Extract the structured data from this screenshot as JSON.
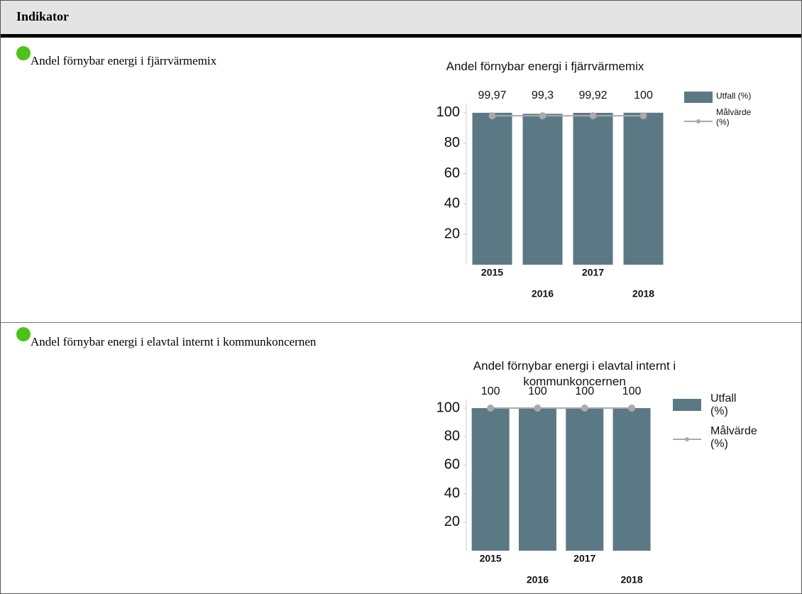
{
  "header": "Indikator",
  "rows": [
    {
      "label": "Andel förnybar energi i fjärrvärmemix"
    },
    {
      "label": "Andel förnybar energi i elavtal internt i kommunkoncernen"
    }
  ],
  "chart_data": [
    {
      "type": "bar",
      "title": "Andel förnybar energi i fjärrvärmemix",
      "categories": [
        "2015",
        "2016",
        "2017",
        "2018"
      ],
      "series": [
        {
          "name": "Utfall (%)",
          "color": "#5b7985",
          "values": [
            99.97,
            99.3,
            99.92,
            100
          ],
          "value_labels": [
            "99,97",
            "99,3",
            "99,92",
            "100"
          ]
        },
        {
          "name": "Målvärde (%)",
          "color": "#aaaaaa",
          "type": "line",
          "values": [
            98,
            98,
            98,
            98
          ]
        }
      ],
      "ylim": [
        0,
        106
      ],
      "yticks": [
        20,
        40,
        60,
        80,
        100
      ]
    },
    {
      "type": "bar",
      "title": "Andel förnybar energi i elavtal internt i kommunkoncernen",
      "categories": [
        "2015",
        "2016",
        "2017",
        "2018"
      ],
      "series": [
        {
          "name": "Utfall (%)",
          "color": "#5b7985",
          "values": [
            100,
            100,
            100,
            100
          ]
        },
        {
          "name": "Målvärde (%)",
          "color": "#aaaaaa",
          "type": "line",
          "values": [
            100,
            100,
            100,
            100
          ]
        }
      ],
      "ylim": [
        0,
        106
      ],
      "yticks": [
        20,
        40,
        60,
        80,
        100
      ]
    }
  ]
}
